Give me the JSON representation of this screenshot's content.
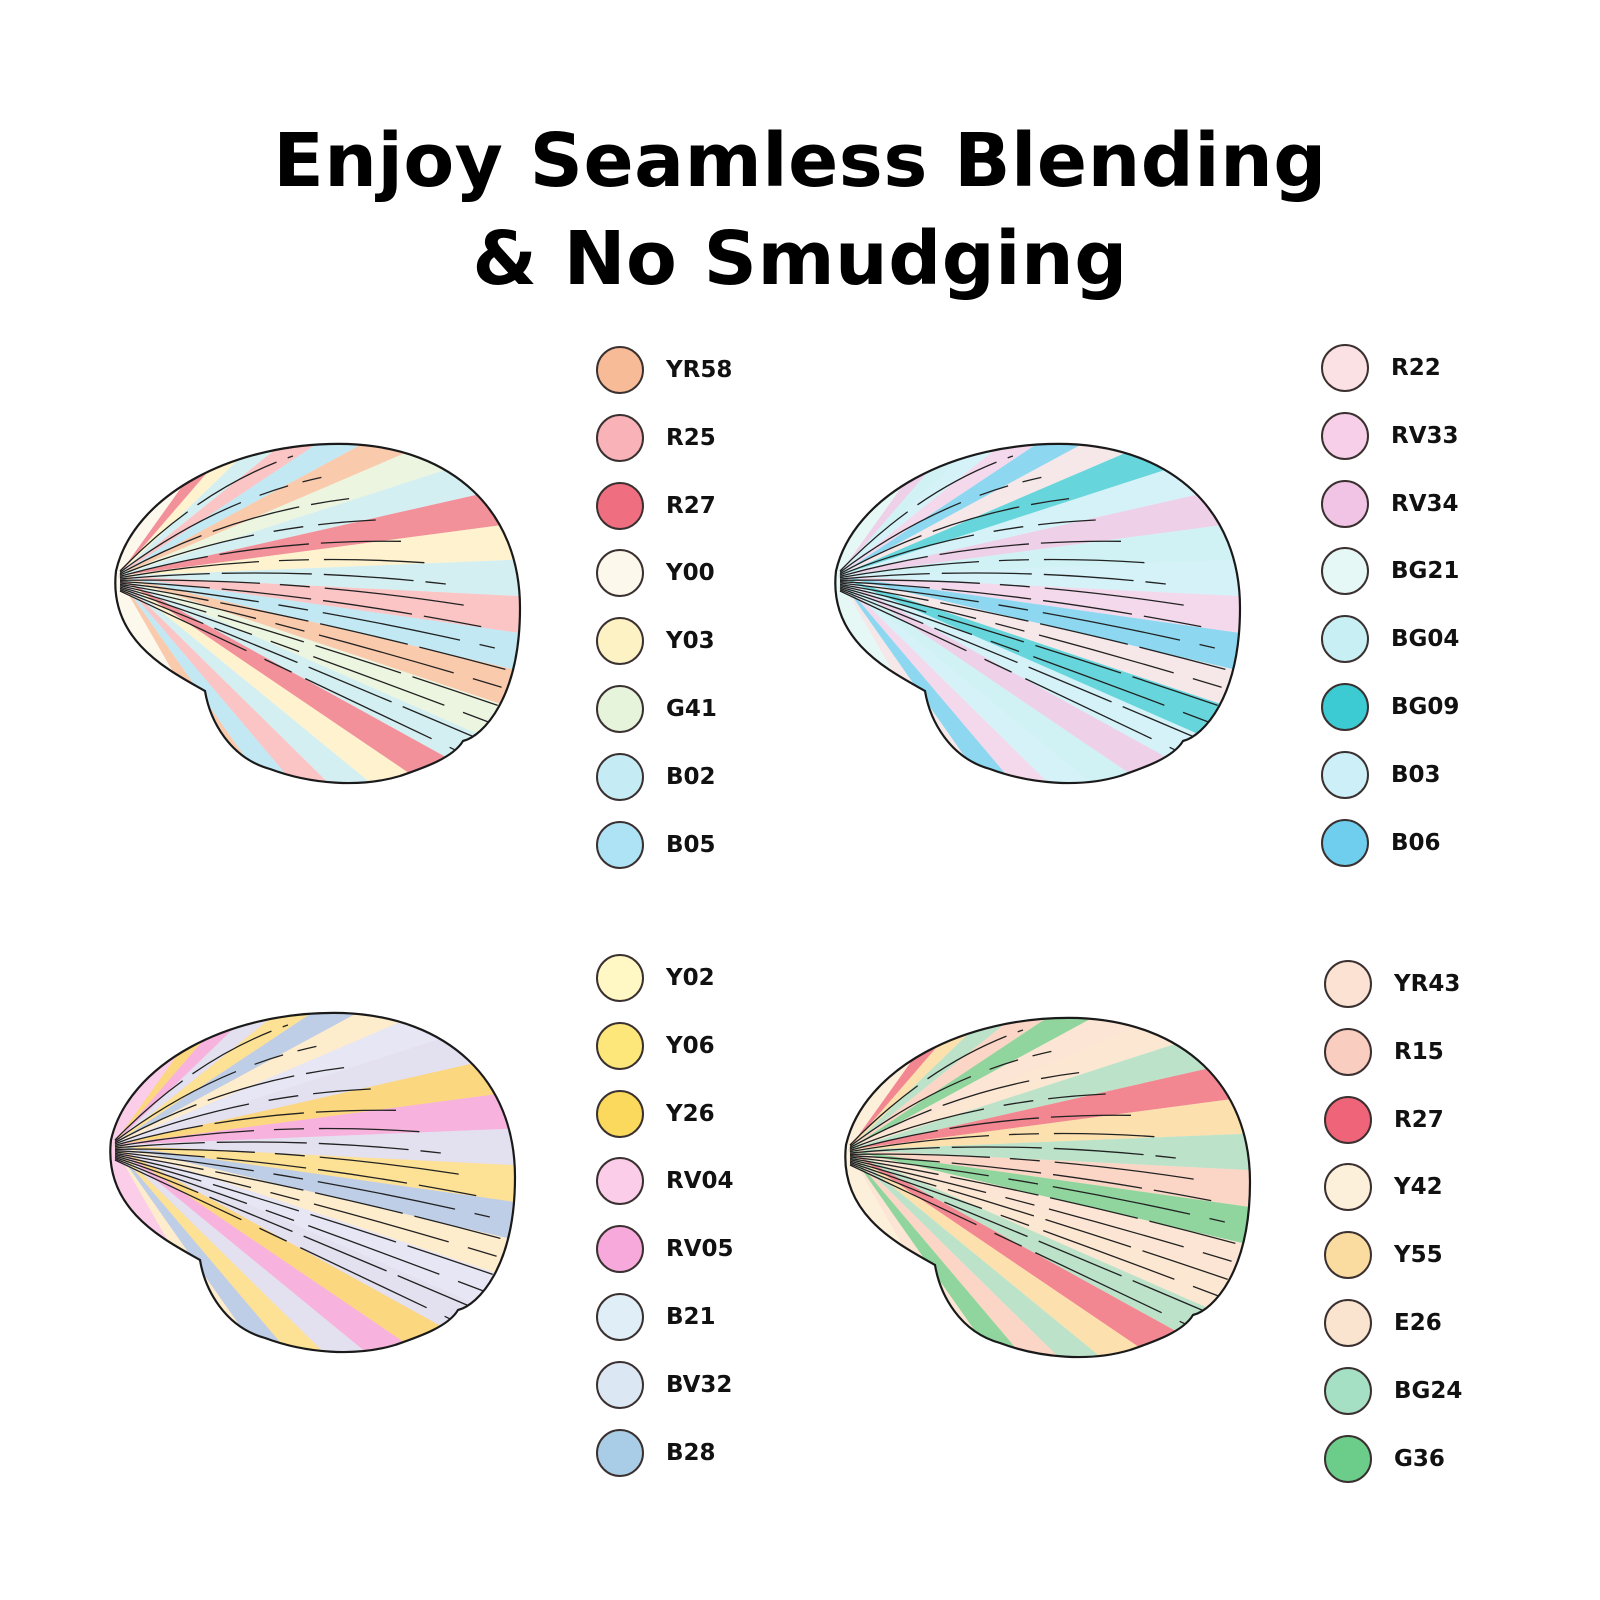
{
  "title": {
    "line1": "Enjoy Seamless Blending",
    "line2": "& No Smudging"
  },
  "panels": [
    {
      "swatches": [
        {
          "code": "YR58",
          "color": "#f8bb98"
        },
        {
          "code": "R25",
          "color": "#f9b3b8"
        },
        {
          "code": "R27",
          "color": "#ef6f80"
        },
        {
          "code": "Y00",
          "color": "#fdf8ec"
        },
        {
          "code": "Y03",
          "color": "#fdf2c4"
        },
        {
          "code": "G41",
          "color": "#e6f4dc"
        },
        {
          "code": "B02",
          "color": "#c5ecf4"
        },
        {
          "code": "B05",
          "color": "#aee3f5"
        }
      ]
    },
    {
      "swatches": [
        {
          "code": "R22",
          "color": "#fbe1e4"
        },
        {
          "code": "RV33",
          "color": "#f8cfe8"
        },
        {
          "code": "RV34",
          "color": "#f1c3e4"
        },
        {
          "code": "BG21",
          "color": "#e6f8f5"
        },
        {
          "code": "BG04",
          "color": "#c8f0f4"
        },
        {
          "code": "BG09",
          "color": "#3ccbd3"
        },
        {
          "code": "B03",
          "color": "#cdf0f8"
        },
        {
          "code": "B06",
          "color": "#6fcdee"
        }
      ]
    },
    {
      "swatches": [
        {
          "code": "Y02",
          "color": "#fff7c4"
        },
        {
          "code": "Y06",
          "color": "#fde77a"
        },
        {
          "code": "Y26",
          "color": "#fbd95c"
        },
        {
          "code": "RV04",
          "color": "#fbcde8"
        },
        {
          "code": "RV05",
          "color": "#f6a9da"
        },
        {
          "code": "B21",
          "color": "#e0eef8"
        },
        {
          "code": "BV32",
          "color": "#dbe7f3"
        },
        {
          "code": "B28",
          "color": "#a9cde6"
        }
      ]
    },
    {
      "swatches": [
        {
          "code": "YR43",
          "color": "#fbe2d2"
        },
        {
          "code": "R15",
          "color": "#f9cdbf"
        },
        {
          "code": "R27",
          "color": "#ef6478"
        },
        {
          "code": "Y42",
          "color": "#fdf0da"
        },
        {
          "code": "Y55",
          "color": "#fbdca0"
        },
        {
          "code": "E26",
          "color": "#fbe4cf"
        },
        {
          "code": "BG24",
          "color": "#a5dfc4"
        },
        {
          "code": "G36",
          "color": "#6ccc8a"
        }
      ]
    }
  ]
}
